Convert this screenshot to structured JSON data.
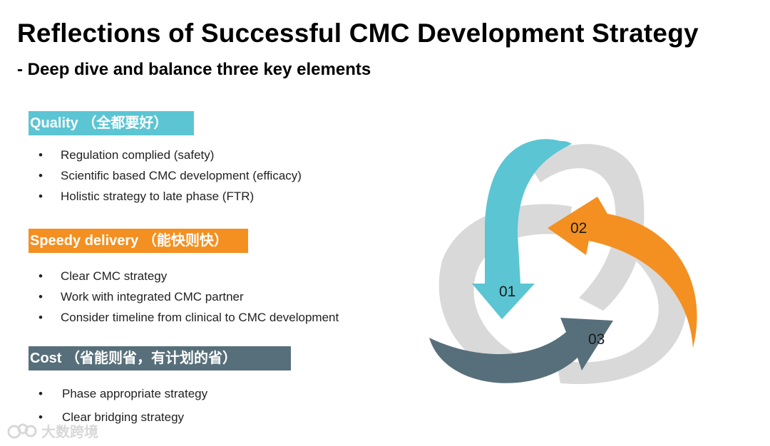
{
  "title": "Reflections of Successful CMC Development Strategy",
  "subtitle": "- Deep dive and balance three key elements",
  "sections": [
    {
      "header": "Quality （全都要好）",
      "color": "#5bc5d3",
      "bullets": [
        "Regulation complied (safety)",
        "Scientific based CMC development (efficacy)",
        "Holistic strategy to late phase (FTR)"
      ]
    },
    {
      "header": "Speedy delivery （能快则快）",
      "color": "#f39021",
      "bullets": [
        "Clear CMC strategy",
        "Work with integrated CMC partner",
        "Consider timeline from clinical to CMC development"
      ]
    },
    {
      "header": "Cost （省能则省，有计划的省）",
      "color": "#576f7a",
      "bullets": [
        "Phase appropriate strategy",
        "Clear bridging strategy"
      ]
    }
  ],
  "diagram": {
    "labels": [
      "01",
      "02",
      "03"
    ],
    "arrow_colors": [
      "#5bc5d3",
      "#f39021",
      "#576f7a"
    ],
    "ring_color": "#d9d9d9"
  },
  "watermark": {
    "text": "大数跨境",
    "logo_icon": "cloud-logo-icon"
  }
}
